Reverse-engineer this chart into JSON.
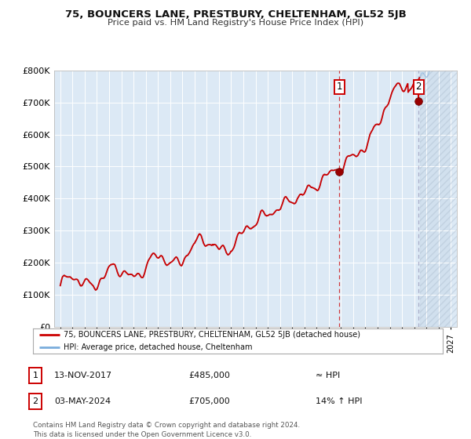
{
  "title": "75, BOUNCERS LANE, PRESTBURY, CHELTENHAM, GL52 5JB",
  "subtitle": "Price paid vs. HM Land Registry's House Price Index (HPI)",
  "ylim": [
    0,
    800000
  ],
  "yticks": [
    0,
    100000,
    200000,
    300000,
    400000,
    500000,
    600000,
    700000,
    800000
  ],
  "ytick_labels": [
    "£0",
    "£100K",
    "£200K",
    "£300K",
    "£400K",
    "£500K",
    "£600K",
    "£700K",
    "£800K"
  ],
  "line_color": "#cc0000",
  "hpi_color": "#7aaddc",
  "background_color": "#dce9f5",
  "grid_color": "#ffffff",
  "point1_x": 2017.87,
  "point1_y": 485000,
  "point2_x": 2024.37,
  "point2_y": 705000,
  "point1_label": "1",
  "point2_label": "2",
  "legend_line1": "75, BOUNCERS LANE, PRESTBURY, CHELTENHAM, GL52 5JB (detached house)",
  "legend_line2": "HPI: Average price, detached house, Cheltenham",
  "annotation1_date": "13-NOV-2017",
  "annotation1_price": "£485,000",
  "annotation1_hpi": "≈ HPI",
  "annotation2_date": "03-MAY-2024",
  "annotation2_price": "£705,000",
  "annotation2_hpi": "14% ↑ HPI",
  "footer": "Contains HM Land Registry data © Crown copyright and database right 2024.\nThis data is licensed under the Open Government Licence v3.0.",
  "xmin": 1994.5,
  "xmax": 2027.5,
  "future_start": 2024.45
}
